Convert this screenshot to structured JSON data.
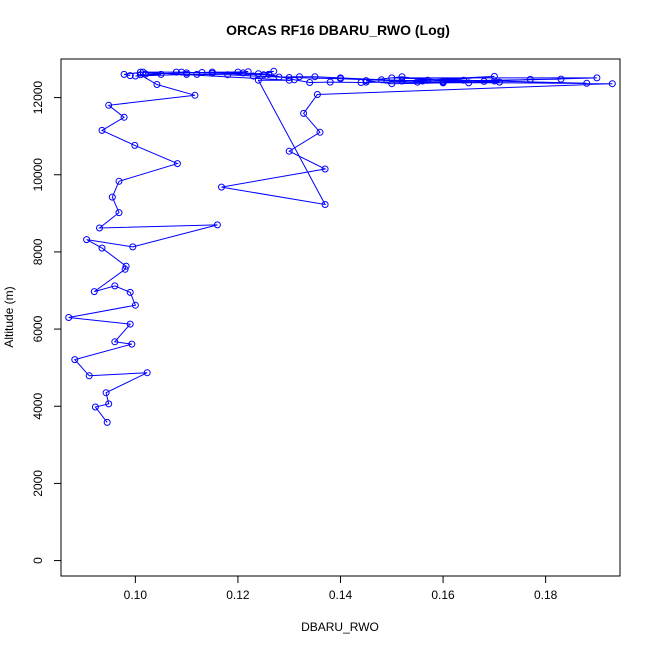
{
  "chart_data": {
    "type": "line",
    "title": "ORCAS RF16 DBARU_RWO (Log)",
    "xlabel": "DBARU_RWO",
    "ylabel": "Altitude (m)",
    "xlim": [
      0.0855,
      0.1945
    ],
    "ylim": [
      -400,
      13000
    ],
    "xticks": [
      0.1,
      0.12,
      0.14,
      0.16,
      0.18
    ],
    "xtick_labels": [
      "0.10",
      "0.12",
      "0.14",
      "0.16",
      "0.18"
    ],
    "yticks": [
      0,
      2000,
      4000,
      6000,
      8000,
      10000,
      12000
    ],
    "ytick_labels": [
      "0",
      "2000",
      "4000",
      "6000",
      "8000",
      "10000",
      "12000"
    ],
    "grid": false,
    "marker": "open-circle",
    "series": [
      {
        "color": "#0000ff",
        "x": [
          0.0945,
          0.0922,
          0.0948,
          0.0943,
          0.1023,
          0.091,
          0.0882,
          0.0993,
          0.096,
          0.099,
          0.087,
          0.1,
          0.099,
          0.096,
          0.092,
          0.098,
          0.0982,
          0.0935,
          0.0905,
          0.0995,
          0.116,
          0.093,
          0.0968,
          0.0955,
          0.0968,
          0.1082,
          0.0999,
          0.0935,
          0.0978,
          0.0948,
          0.1116,
          0.1042,
          0.101,
          0.101,
          0.13,
          0.124,
          0.137,
          0.1168,
          0.137,
          0.13,
          0.136,
          0.1328,
          0.1355,
          0.193,
          0.16,
          0.19,
          0.15,
          0.164,
          0.188,
          0.145,
          0.155,
          0.17,
          0.152,
          0.14,
          0.13,
          0.123,
          0.118,
          0.112,
          0.11,
          0.1,
          0.105,
          0.102,
          0.113,
          0.115,
          0.12,
          0.122,
          0.11,
          0.109,
          0.125,
          0.127,
          0.124,
          0.128,
          0.132,
          0.135,
          0.14,
          0.148,
          0.156,
          0.16,
          0.168,
          0.171,
          0.16,
          0.15,
          0.145,
          0.152,
          0.157,
          0.165,
          0.17,
          0.177,
          0.183,
          0.144,
          0.138,
          0.134,
          0.131,
          0.126,
          0.121,
          0.115,
          0.108,
          0.1015,
          0.0978,
          0.099
        ],
        "y": [
          3580,
          3980,
          4060,
          4350,
          4870,
          4790,
          5210,
          5610,
          5670,
          6130,
          6300,
          6620,
          6950,
          7120,
          6970,
          7550,
          7630,
          8100,
          8320,
          8130,
          8700,
          8620,
          9020,
          9420,
          9830,
          10290,
          10760,
          11150,
          11490,
          11800,
          12060,
          12340,
          12590,
          12660,
          12450,
          12450,
          9230,
          9680,
          10150,
          10610,
          11100,
          11590,
          12080,
          12360,
          12400,
          12510,
          12510,
          12450,
          12370,
          12400,
          12400,
          12550,
          12430,
          12490,
          12520,
          12560,
          12590,
          12600,
          12600,
          12560,
          12600,
          12610,
          12650,
          12660,
          12660,
          12670,
          12640,
          12660,
          12590,
          12680,
          12620,
          12530,
          12540,
          12540,
          12510,
          12460,
          12430,
          12420,
          12420,
          12400,
          12380,
          12360,
          12440,
          12540,
          12450,
          12380,
          12430,
          12470,
          12480,
          12390,
          12400,
          12390,
          12460,
          12600,
          12640,
          12630,
          12660,
          12660,
          12600,
          12570
        ]
      }
    ]
  }
}
